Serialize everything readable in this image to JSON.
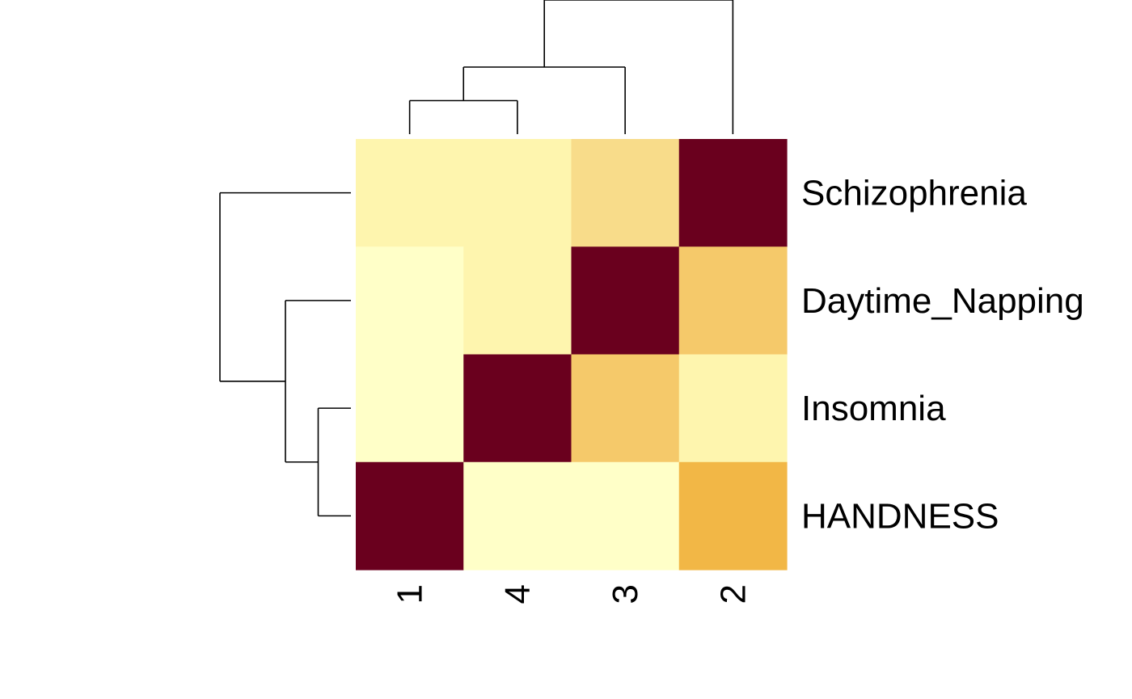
{
  "chart_data": {
    "type": "heatmap",
    "title": "",
    "xlabel": "",
    "ylabel": "",
    "columns": [
      "1",
      "4",
      "3",
      "2"
    ],
    "rows": [
      "Schizophrenia",
      "Daytime_Napping",
      "Insomnia",
      "HANDNESS"
    ],
    "values": [
      [
        0.1,
        0.1,
        0.25,
        1.0
      ],
      [
        0.0,
        0.1,
        1.0,
        0.35
      ],
      [
        0.0,
        1.0,
        0.35,
        0.1
      ],
      [
        1.0,
        0.0,
        0.0,
        0.45
      ]
    ],
    "color_scale": [
      "#FFFFC8",
      "#FEF2A8",
      "#F8DC8A",
      "#F4C462",
      "#F0AF33",
      "#6A001E"
    ],
    "column_dendrogram": [
      {
        "left": "1",
        "right": "4",
        "height": 1
      },
      {
        "left": "1+4",
        "right": "3",
        "height": 2
      },
      {
        "left": "1+4+3",
        "right": "2",
        "height": 4
      }
    ],
    "row_dendrogram": [
      {
        "left": "Insomnia",
        "right": "HANDNESS",
        "height": 1
      },
      {
        "left": "Daytime_Napping",
        "right": "Insomnia+HANDNESS",
        "height": 2
      },
      {
        "left": "Schizophrenia",
        "right": "Daytime_Napping+Insomnia+HANDNESS",
        "height": 4
      }
    ]
  }
}
